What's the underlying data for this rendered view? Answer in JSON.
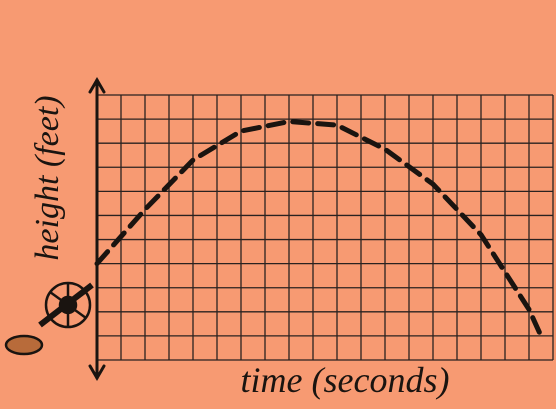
{
  "chart_data": {
    "type": "line",
    "x_label": "time (seconds)",
    "y_label": "height (feet)",
    "x": [
      0,
      2,
      4,
      6,
      8,
      10,
      12,
      14,
      16,
      18,
      18.5
    ],
    "series": [
      {
        "values": [
          4.0,
          6.25,
          8.3,
          9.5,
          9.9,
          9.75,
          8.75,
          7.3,
          5.2,
          2.1,
          1.0
        ],
        "color": "#1a1410"
      }
    ],
    "xlim": [
      0,
      19
    ],
    "ylim": [
      0,
      11
    ],
    "grid": true
  }
}
